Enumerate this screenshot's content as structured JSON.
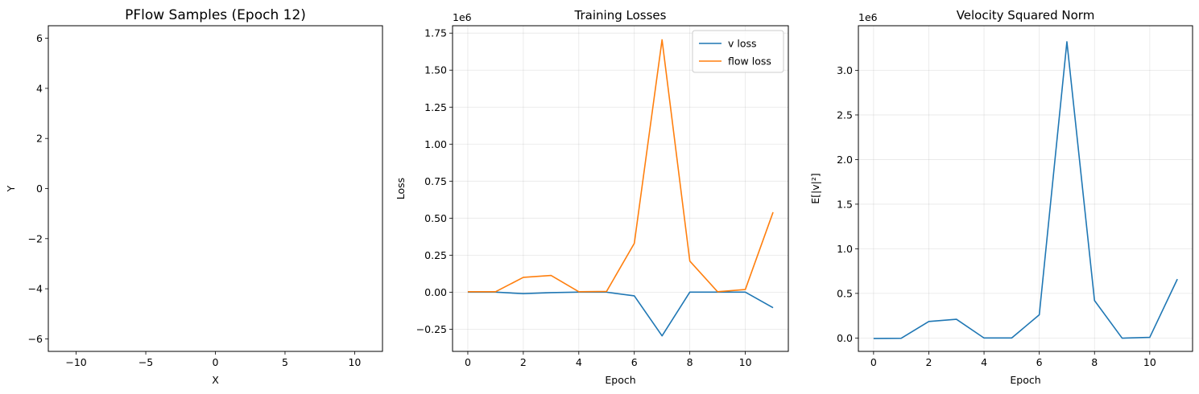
{
  "chart_data": [
    {
      "type": "scatter",
      "title": "PFlow Samples (Epoch 12)",
      "xlabel": "X",
      "ylabel": "Y",
      "xlim": [
        -12,
        12
      ],
      "ylim": [
        -6.5,
        6.5
      ],
      "xticks": [
        -10,
        -5,
        0,
        5,
        10
      ],
      "xtick_labels": [
        "−10",
        "−5",
        "0",
        "5",
        "10"
      ],
      "yticks": [
        -6,
        -4,
        -2,
        0,
        2,
        4,
        6
      ],
      "ytick_labels": [
        "−6",
        "−4",
        "−2",
        "0",
        "2",
        "4",
        "6"
      ],
      "grid": false,
      "series": []
    },
    {
      "type": "line",
      "title": "Training Losses",
      "xlabel": "Epoch",
      "ylabel": "Loss",
      "offset_label": "1e6",
      "xlim": [
        -0.55,
        11.55
      ],
      "ylim": [
        -0.4,
        1.8
      ],
      "xticks": [
        0,
        2,
        4,
        6,
        8,
        10
      ],
      "xtick_labels": [
        "0",
        "2",
        "4",
        "6",
        "8",
        "10"
      ],
      "yticks": [
        -0.25,
        0,
        0.25,
        0.5,
        0.75,
        1.0,
        1.25,
        1.5,
        1.75
      ],
      "ytick_labels": [
        "−0.25",
        "0.00",
        "0.25",
        "0.50",
        "0.75",
        "1.00",
        "1.25",
        "1.50",
        "1.75"
      ],
      "grid": true,
      "legend_position": "top-right",
      "x": [
        0,
        1,
        2,
        3,
        4,
        5,
        6,
        7,
        8,
        9,
        10,
        11
      ],
      "series": [
        {
          "name": "v loss",
          "color": "#1f77b4",
          "values": [
            0.0,
            0.0,
            -0.01,
            -0.003,
            0.0,
            0.0,
            -0.025,
            -0.295,
            0.0,
            0.0,
            0.0,
            -0.105
          ]
        },
        {
          "name": "flow loss",
          "color": "#ff7f0e",
          "values": [
            0.003,
            0.003,
            0.1,
            0.113,
            0.003,
            0.005,
            0.33,
            1.705,
            0.21,
            0.003,
            0.018,
            0.54
          ]
        }
      ]
    },
    {
      "type": "line",
      "title": "Velocity Squared Norm",
      "xlabel": "Epoch",
      "ylabel": "E[|v|²]",
      "offset_label": "1e6",
      "xlim": [
        -0.55,
        11.55
      ],
      "ylim": [
        -0.15,
        3.5
      ],
      "xticks": [
        0,
        2,
        4,
        6,
        8,
        10
      ],
      "xtick_labels": [
        "0",
        "2",
        "4",
        "6",
        "8",
        "10"
      ],
      "yticks": [
        0,
        0.5,
        1.0,
        1.5,
        2.0,
        2.5,
        3.0
      ],
      "ytick_labels": [
        "0.0",
        "0.5",
        "1.0",
        "1.5",
        "2.0",
        "2.5",
        "3.0"
      ],
      "grid": true,
      "x": [
        0,
        1,
        2,
        3,
        4,
        5,
        6,
        7,
        8,
        9,
        10,
        11
      ],
      "series": [
        {
          "color": "#1f77b4",
          "values": [
            -0.005,
            -0.003,
            0.185,
            0.21,
            0.0,
            0.0,
            0.26,
            3.32,
            0.42,
            -0.002,
            0.007,
            0.66
          ]
        }
      ]
    }
  ]
}
